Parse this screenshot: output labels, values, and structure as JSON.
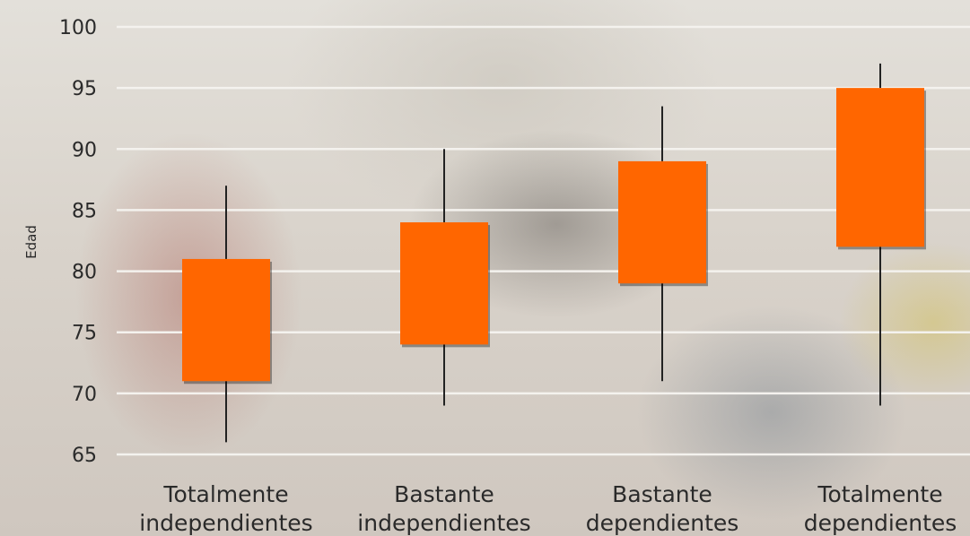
{
  "chart_data": {
    "type": "box",
    "ylabel": "Edad",
    "yticks": [
      100,
      95,
      90,
      85,
      80,
      75,
      70,
      65
    ],
    "ylim": [
      65,
      100
    ],
    "grid": true,
    "categories": [
      [
        "Totalmente",
        "independientes"
      ],
      [
        "Bastante",
        "independientes"
      ],
      [
        "Bastante",
        "dependientes"
      ],
      [
        "Totalmente",
        "dependientes"
      ]
    ],
    "boxes": [
      {
        "min": 66,
        "q1": 71,
        "q3": 81,
        "max": 87
      },
      {
        "min": 69,
        "q1": 74,
        "q3": 84,
        "max": 90
      },
      {
        "min": 71,
        "q1": 79,
        "q3": 89,
        "max": 93.5
      },
      {
        "min": 69,
        "q1": 82,
        "q3": 95,
        "max": 97
      }
    ],
    "colors": {
      "box": "#ff6600",
      "whisker": "#222222",
      "grid": "#f4f2ee",
      "text": "#2a2a2a"
    }
  }
}
